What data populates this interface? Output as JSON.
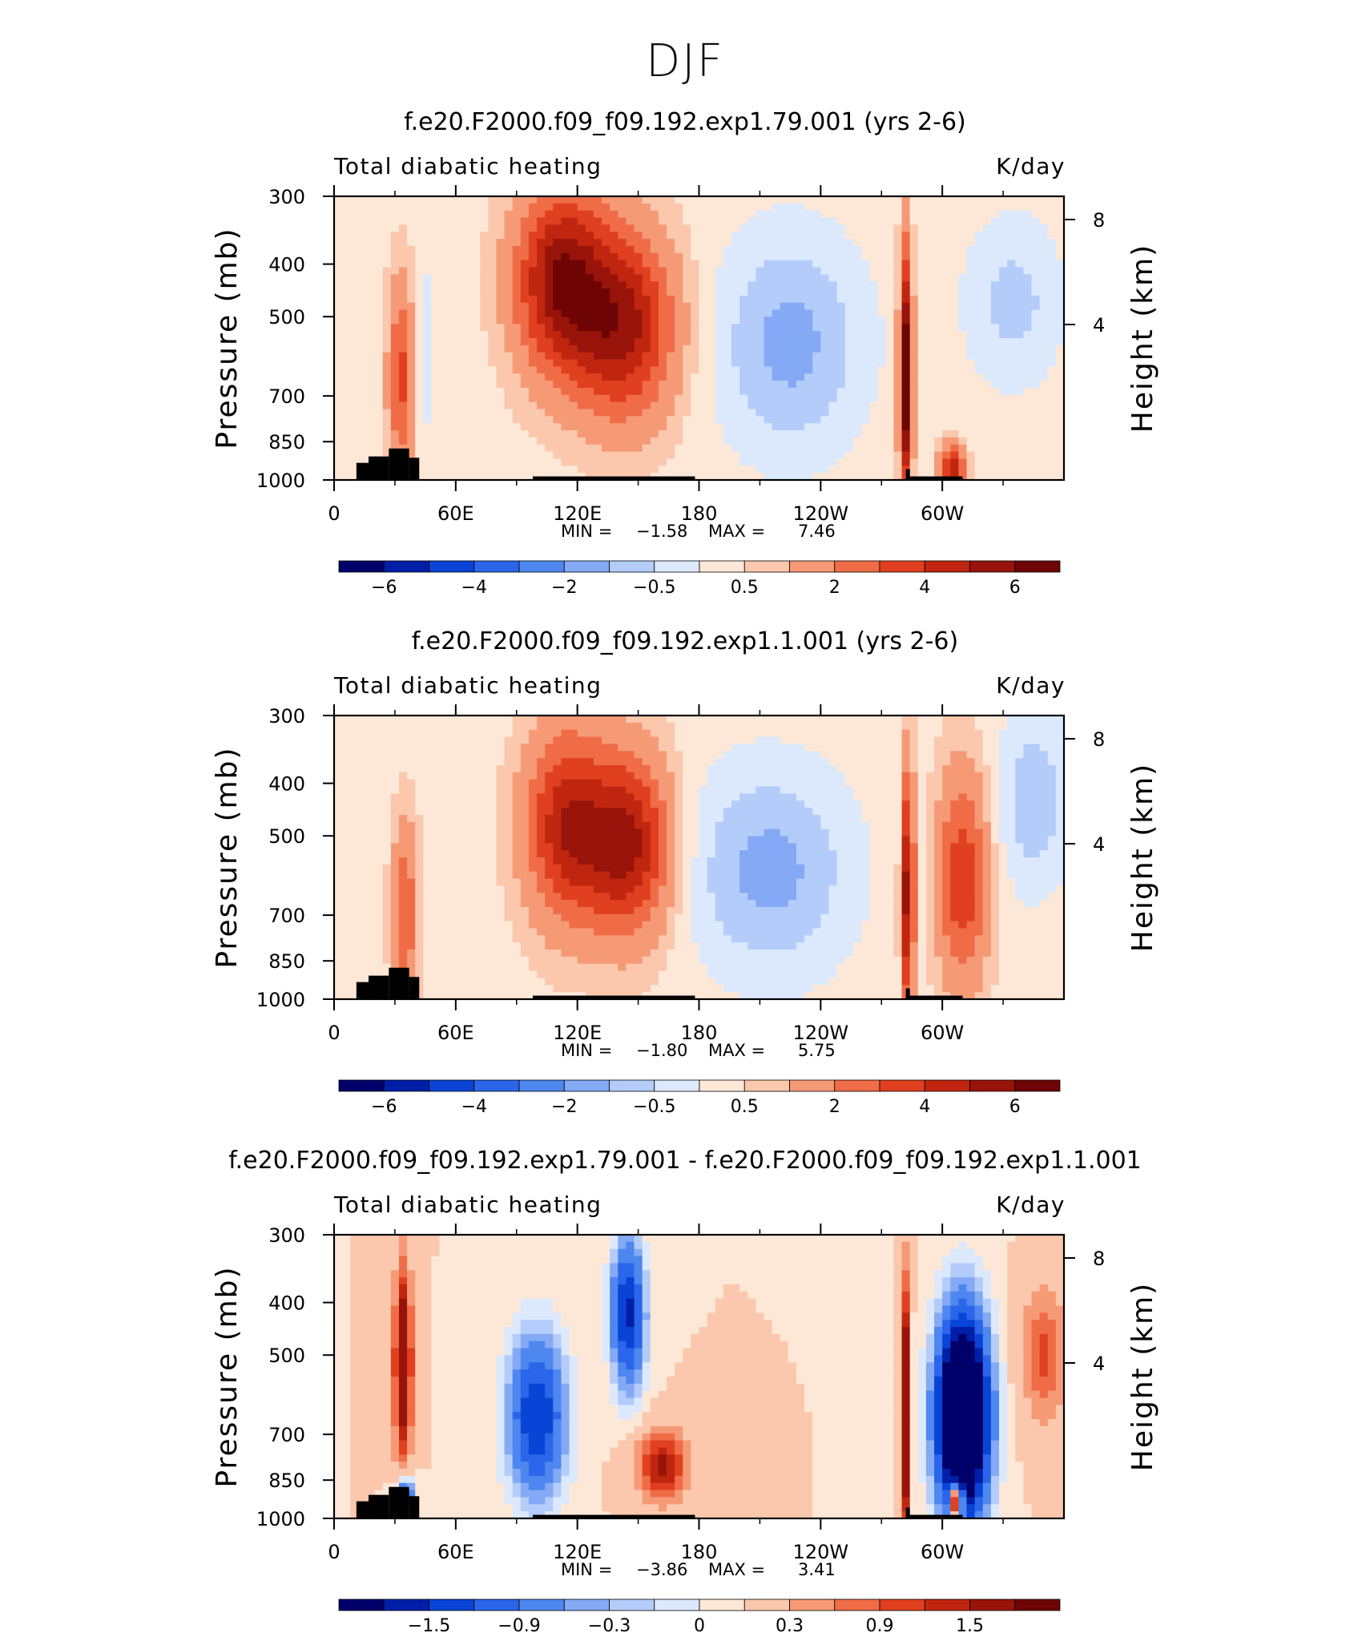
{
  "title": "DJF",
  "x_ticks": [
    "0",
    "60E",
    "120E",
    "180",
    "120W",
    "60W"
  ],
  "y_ticks": [
    "300",
    "400",
    "500",
    "700",
    "850",
    "1000"
  ],
  "height_ticks": [
    "8",
    "4"
  ],
  "ylabel": "Pressure (mb)",
  "ylabel_right": "Height (km)",
  "variable": "Total diabatic heating",
  "units": "K/day",
  "colors": {
    "text": "#000000",
    "terrain": "#000000",
    "palette": [
      "#00006a",
      "#001fa8",
      "#0a44d6",
      "#2b66ea",
      "#4d87ef",
      "#84a9f5",
      "#b4ccfa",
      "#dce9fc",
      "#fde8d8",
      "#fbc8ad",
      "#f69a76",
      "#ef6c47",
      "#e0401f",
      "#c0260f",
      "#98140a",
      "#6e0404"
    ]
  },
  "panels": [
    {
      "subtitle": "f.e20.F2000.f09_f09.192.exp1.79.001 (yrs 2-6)",
      "min_label": "MIN =",
      "min_value": "−1.58",
      "max_label": "MAX =",
      "max_value": "7.46",
      "colorbar_labels": [
        "−6",
        "−4",
        "−2",
        "−0.5",
        "0.5",
        "2",
        "4",
        "6"
      ]
    },
    {
      "subtitle": "f.e20.F2000.f09_f09.192.exp1.1.001 (yrs 2-6)",
      "min_label": "MIN =",
      "min_value": "−1.80",
      "max_label": "MAX =",
      "max_value": "5.75",
      "colorbar_labels": [
        "−6",
        "−4",
        "−2",
        "−0.5",
        "0.5",
        "2",
        "4",
        "6"
      ]
    },
    {
      "subtitle": "f.e20.F2000.f09_f09.192.exp1.79.001 - f.e20.F2000.f09_f09.192.exp1.1.001",
      "min_label": "MIN =",
      "min_value": "−3.86",
      "max_label": "MAX =",
      "max_value": "3.41",
      "colorbar_labels": [
        "−1.5",
        "−0.9",
        "−0.3",
        "0",
        "0.3",
        "0.9",
        "1.5"
      ]
    }
  ],
  "chart_data": [
    {
      "type": "heatmap",
      "title": "f.e20.F2000.f09_f09.192.exp1.79.001 (yrs 2-6)",
      "variable": "Total diabatic heating",
      "units": "K/day",
      "x": [
        0,
        60,
        120,
        180,
        240,
        300
      ],
      "x_labels": [
        "0",
        "60E",
        "120E",
        "180",
        "120W",
        "60W"
      ],
      "y_pressure": [
        300,
        400,
        500,
        700,
        850,
        1000
      ],
      "levels": [
        -7,
        -6,
        -5,
        -4,
        -3,
        -2,
        -1,
        -0.5,
        0,
        0.5,
        1,
        2,
        3,
        4,
        5,
        6,
        7
      ],
      "min": -1.58,
      "max": 7.46,
      "features": [
        {
          "lon": 33,
          "p": 650,
          "value": 3.0,
          "lon_halfwidth": 6,
          "p_halfwidth": 320
        },
        {
          "lon": 45,
          "p": 580,
          "value": -0.6,
          "lon_halfwidth": 5,
          "p_halfwidth": 300
        },
        {
          "lon": 112,
          "p": 430,
          "value": 5.5,
          "lon_halfwidth": 22,
          "p_halfwidth": 200
        },
        {
          "lon": 143,
          "p": 520,
          "value": 5.0,
          "lon_halfwidth": 24,
          "p_halfwidth": 240
        },
        {
          "lon": 225,
          "p": 560,
          "value": -1.5,
          "lon_halfwidth": 36,
          "p_halfwidth": 330
        },
        {
          "lon": 282,
          "p": 640,
          "value": 7.0,
          "lon_halfwidth": 3,
          "p_halfwidth": 420
        },
        {
          "lon": 305,
          "p": 960,
          "value": 4.5,
          "lon_halfwidth": 6,
          "p_halfwidth": 100
        },
        {
          "lon": 335,
          "p": 470,
          "value": -1.0,
          "lon_halfwidth": 24,
          "p_halfwidth": 200
        }
      ]
    },
    {
      "type": "heatmap",
      "title": "f.e20.F2000.f09_f09.192.exp1.1.001 (yrs 2-6)",
      "variable": "Total diabatic heating",
      "units": "K/day",
      "x": [
        0,
        60,
        120,
        180,
        240,
        300
      ],
      "x_labels": [
        "0",
        "60E",
        "120E",
        "180",
        "120W",
        "60W"
      ],
      "y_pressure": [
        300,
        400,
        500,
        700,
        850,
        1000
      ],
      "levels": [
        -7,
        -6,
        -5,
        -4,
        -3,
        -2,
        -1,
        -0.5,
        0,
        0.5,
        1,
        2,
        3,
        4,
        5,
        6,
        7
      ],
      "min": -1.8,
      "max": 5.75,
      "features": [
        {
          "lon": 35,
          "p": 700,
          "value": 2.5,
          "lon_halfwidth": 6,
          "p_halfwidth": 330
        },
        {
          "lon": 115,
          "p": 480,
          "value": 4.5,
          "lon_halfwidth": 20,
          "p_halfwidth": 230
        },
        {
          "lon": 145,
          "p": 520,
          "value": 5.0,
          "lon_halfwidth": 20,
          "p_halfwidth": 230
        },
        {
          "lon": 215,
          "p": 580,
          "value": -1.5,
          "lon_halfwidth": 40,
          "p_halfwidth": 320
        },
        {
          "lon": 283,
          "p": 640,
          "value": 5.5,
          "lon_halfwidth": 3,
          "p_halfwidth": 420
        },
        {
          "lon": 310,
          "p": 600,
          "value": 3.5,
          "lon_halfwidth": 12,
          "p_halfwidth": 330
        },
        {
          "lon": 345,
          "p": 430,
          "value": -1.2,
          "lon_halfwidth": 18,
          "p_halfwidth": 200
        }
      ]
    },
    {
      "type": "heatmap",
      "title": "f.e20.F2000.f09_f09.192.exp1.79.001 - f.e20.F2000.f09_f09.192.exp1.1.001",
      "variable": "Total diabatic heating",
      "units": "K/day",
      "x": [
        0,
        60,
        120,
        180,
        240,
        300
      ],
      "x_labels": [
        "0",
        "60E",
        "120E",
        "180",
        "120W",
        "60W"
      ],
      "y_pressure": [
        300,
        400,
        500,
        700,
        850,
        1000
      ],
      "levels": [
        -1.8,
        -1.5,
        -1.2,
        -0.9,
        -0.6,
        -0.3,
        -0.15,
        0,
        0.15,
        0.3,
        0.6,
        0.9,
        1.2,
        1.5,
        1.8
      ],
      "min": -3.86,
      "max": 3.41,
      "features": [
        {
          "lon": 34,
          "p": 520,
          "value": 2.5,
          "lon_halfwidth": 4,
          "p_halfwidth": 240
        },
        {
          "lon": 35,
          "p": 900,
          "value": -1.5,
          "lon_halfwidth": 4,
          "p_halfwidth": 70
        },
        {
          "lon": 100,
          "p": 650,
          "value": -1.5,
          "lon_halfwidth": 14,
          "p_halfwidth": 260
        },
        {
          "lon": 145,
          "p": 420,
          "value": -1.6,
          "lon_halfwidth": 8,
          "p_halfwidth": 150
        },
        {
          "lon": 162,
          "p": 800,
          "value": 1.6,
          "lon_halfwidth": 12,
          "p_halfwidth": 120
        },
        {
          "lon": 282,
          "p": 640,
          "value": 2.5,
          "lon_halfwidth": 2,
          "p_halfwidth": 420
        },
        {
          "lon": 310,
          "p": 650,
          "value": -3.8,
          "lon_halfwidth": 12,
          "p_halfwidth": 330
        },
        {
          "lon": 307,
          "p": 930,
          "value": 3.0,
          "lon_halfwidth": 3,
          "p_halfwidth": 70
        },
        {
          "lon": 350,
          "p": 500,
          "value": 1.0,
          "lon_halfwidth": 10,
          "p_halfwidth": 150
        }
      ]
    }
  ]
}
